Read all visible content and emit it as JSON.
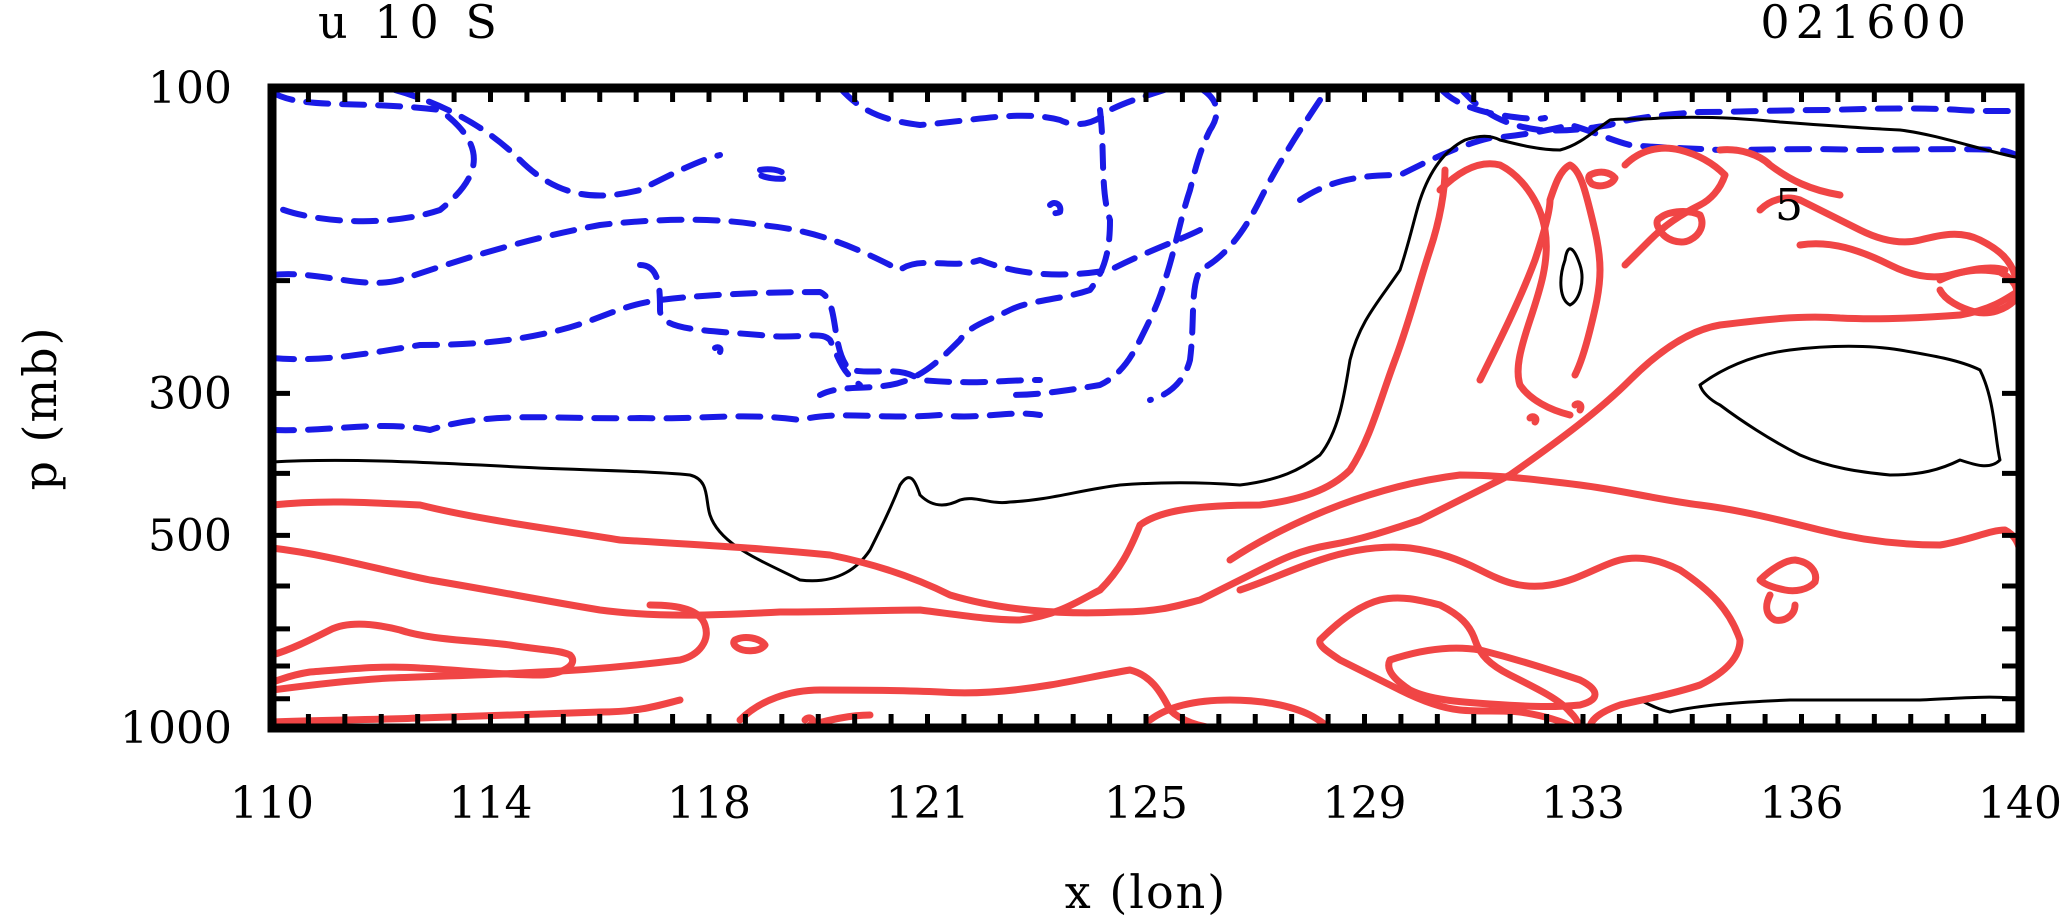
{
  "chart_data": {
    "type": "contour",
    "title_left": "u 10 S",
    "title_right": "021600",
    "xlabel": "x (lon)",
    "ylabel": "p (mb)",
    "xlim": [
      110,
      140
    ],
    "ylim": [
      1000,
      100
    ],
    "x_ticks": [
      "110",
      "114",
      "118",
      "121",
      "125",
      "129",
      "133",
      "136",
      "140"
    ],
    "y_ticks": [
      "100",
      "300",
      "500",
      "1000"
    ],
    "contour_label": "5",
    "colors": {
      "positive": "#f04545",
      "negative": "#1a1ae6",
      "zero": "#000000"
    }
  }
}
